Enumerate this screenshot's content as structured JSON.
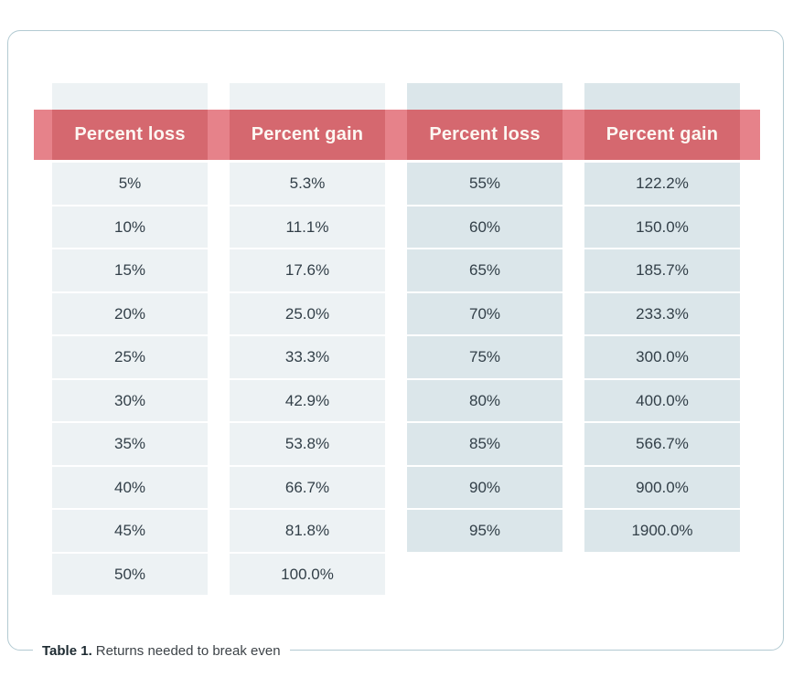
{
  "chart_data": {
    "type": "table",
    "title": "Table 1. Returns needed to break even",
    "columns": [
      {
        "header": "Percent loss",
        "group": "left",
        "values": [
          "5%",
          "10%",
          "15%",
          "20%",
          "25%",
          "30%",
          "35%",
          "40%",
          "45%",
          "50%"
        ]
      },
      {
        "header": "Percent gain",
        "group": "left",
        "values": [
          "5.3%",
          "11.1%",
          "17.6%",
          "25.0%",
          "33.3%",
          "42.9%",
          "53.8%",
          "66.7%",
          "81.8%",
          "100.0%"
        ]
      },
      {
        "header": "Percent loss",
        "group": "right",
        "values": [
          "55%",
          "60%",
          "65%",
          "70%",
          "75%",
          "80%",
          "85%",
          "90%",
          "95%"
        ]
      },
      {
        "header": "Percent gain",
        "group": "right",
        "values": [
          "122.2%",
          "150.0%",
          "185.7%",
          "233.3%",
          "300.0%",
          "400.0%",
          "566.7%",
          "900.0%",
          "1900.0%"
        ]
      }
    ]
  },
  "caption": {
    "label": "Table 1.",
    "text": "Returns needed to break even"
  },
  "colors": {
    "header_band_gap": "#e6828a",
    "header_cell_red": "#d5686f",
    "header_text": "#fcf7f2",
    "column_left_bg": "#edf2f4",
    "column_right_bg": "#dbe6ea",
    "cell_text": "#323f48",
    "frame_border": "#b2cad2",
    "page_bg": "#ffffff"
  }
}
